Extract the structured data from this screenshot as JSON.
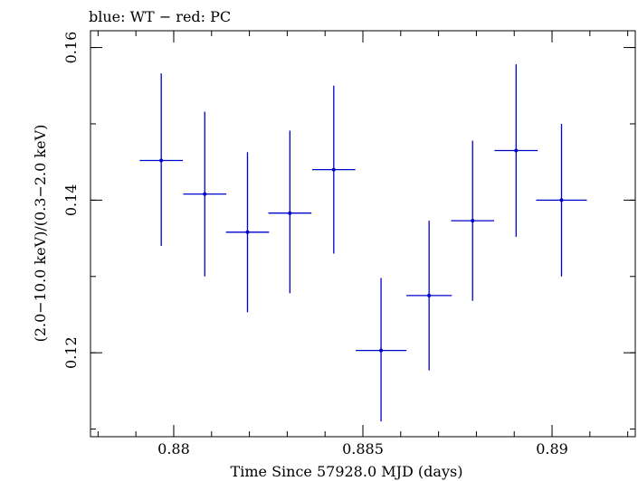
{
  "chart_data": {
    "type": "scatter",
    "title": "blue: WT − red: PC",
    "xlabel": "Time Since 57928.0 MJD (days)",
    "ylabel": "(2.0−10.0 keV)/(0.3−2.0 keV)",
    "xlim": [
      0.8778,
      0.8922
    ],
    "ylim": [
      0.109,
      0.1622
    ],
    "x_ticks": [
      0.88,
      0.885,
      0.89
    ],
    "x_tick_labels": [
      "0.88",
      "0.885",
      "0.89"
    ],
    "y_ticks": [
      0.12,
      0.14,
      0.16
    ],
    "y_tick_labels": [
      "0.12",
      "0.14",
      "0.16"
    ],
    "x_minor_step": 0.001,
    "y_minor_step": 0.01,
    "grid": false,
    "series": [
      {
        "color": "#0000cc",
        "points": [
          {
            "x": 0.87967,
            "xerr": 0.00057,
            "y": 0.1452,
            "yerr_low": 0.0112,
            "yerr_high": 0.0114
          },
          {
            "x": 0.88082,
            "xerr": 0.00057,
            "y": 0.1408,
            "yerr_low": 0.0108,
            "yerr_high": 0.0108
          },
          {
            "x": 0.88195,
            "xerr": 0.00057,
            "y": 0.1358,
            "yerr_low": 0.0105,
            "yerr_high": 0.0105
          },
          {
            "x": 0.88307,
            "xerr": 0.00057,
            "y": 0.1383,
            "yerr_low": 0.0105,
            "yerr_high": 0.0108
          },
          {
            "x": 0.88423,
            "xerr": 0.00057,
            "y": 0.144,
            "yerr_low": 0.011,
            "yerr_high": 0.011
          },
          {
            "x": 0.88548,
            "xerr": 0.00067,
            "y": 0.1203,
            "yerr_low": 0.0093,
            "yerr_high": 0.0095
          },
          {
            "x": 0.88675,
            "xerr": 0.0006,
            "y": 0.1275,
            "yerr_low": 0.0098,
            "yerr_high": 0.0098
          },
          {
            "x": 0.8879,
            "xerr": 0.00057,
            "y": 0.1373,
            "yerr_low": 0.0105,
            "yerr_high": 0.0105
          },
          {
            "x": 0.88905,
            "xerr": 0.00057,
            "y": 0.1465,
            "yerr_low": 0.0113,
            "yerr_high": 0.0113
          },
          {
            "x": 0.89025,
            "xerr": 0.00067,
            "y": 0.14,
            "yerr_low": 0.01,
            "yerr_high": 0.01
          }
        ]
      }
    ]
  }
}
